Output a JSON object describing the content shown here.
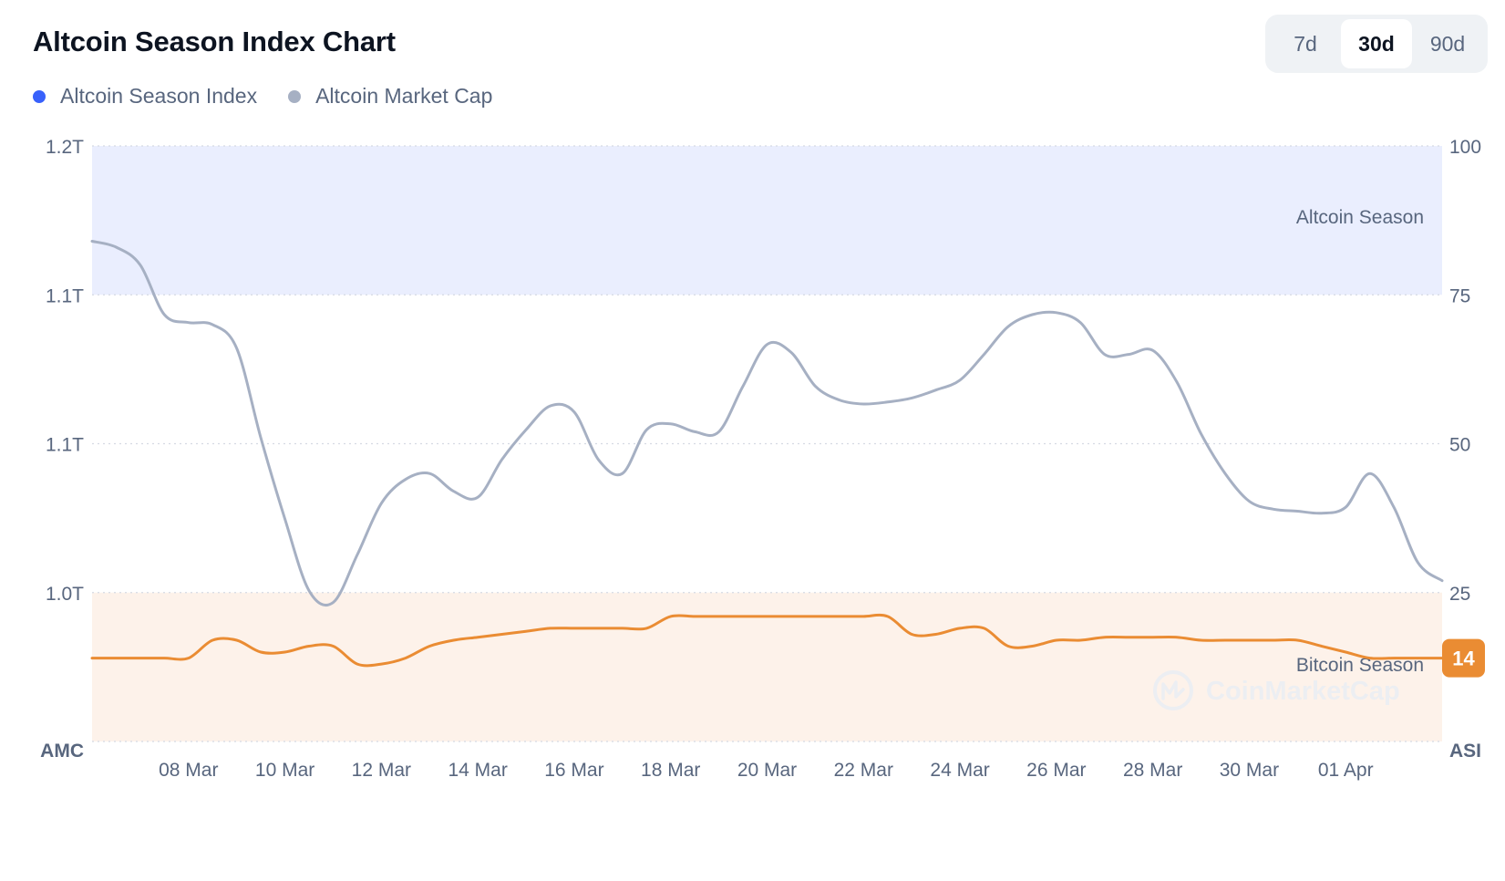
{
  "title": "Altcoin Season Index Chart",
  "legend": [
    {
      "label": "Altcoin Season Index",
      "color": "#3861fb"
    },
    {
      "label": "Altcoin Market Cap",
      "color": "#a6b0c3"
    }
  ],
  "range_buttons": [
    {
      "label": "7d",
      "active": false
    },
    {
      "label": "30d",
      "active": true
    },
    {
      "label": "90d",
      "active": false
    }
  ],
  "watermark": "CoinMarketCap",
  "chart_data": {
    "type": "line",
    "x_ticks": [
      "08 Mar",
      "10 Mar",
      "12 Mar",
      "14 Mar",
      "16 Mar",
      "18 Mar",
      "20 Mar",
      "22 Mar",
      "24 Mar",
      "26 Mar",
      "28 Mar",
      "30 Mar",
      "01 Apr"
    ],
    "x_range": [
      "06 Mar",
      "03 Apr"
    ],
    "left_axis": {
      "title": "AMC",
      "tick_labels": [
        "1.2T",
        "1.1T",
        "1.1T",
        "1.0T"
      ],
      "ylim": [
        0.9,
        1.2
      ],
      "unit": "T"
    },
    "right_axis": {
      "title": "ASI",
      "tick_labels": [
        "100",
        "75",
        "50",
        "25"
      ],
      "ylim": [
        0,
        100
      ]
    },
    "zones": [
      {
        "label": "Altcoin Season",
        "from": 75,
        "to": 100,
        "color": "#eaeefe"
      },
      {
        "label": "Bitcoin Season",
        "from": 0,
        "to": 25,
        "color": "#fdf2ea"
      }
    ],
    "current_value": "14",
    "grid": true,
    "series": [
      {
        "name": "Altcoin Market Cap",
        "axis": "left",
        "color": "#a6b0c3",
        "x": [
          "06 Mar",
          "06 Mar 12:00",
          "07 Mar",
          "07 Mar 12:00",
          "08 Mar",
          "08 Mar 12:00",
          "09 Mar",
          "09 Mar 12:00",
          "10 Mar",
          "10 Mar 12:00",
          "11 Mar",
          "11 Mar 12:00",
          "12 Mar",
          "12 Mar 12:00",
          "13 Mar",
          "13 Mar 12:00",
          "14 Mar",
          "14 Mar 12:00",
          "15 Mar",
          "15 Mar 12:00",
          "16 Mar",
          "16 Mar 12:00",
          "17 Mar",
          "17 Mar 12:00",
          "18 Mar",
          "18 Mar 12:00",
          "19 Mar",
          "19 Mar 12:00",
          "20 Mar",
          "20 Mar 12:00",
          "21 Mar",
          "21 Mar 12:00",
          "22 Mar",
          "22 Mar 12:00",
          "23 Mar",
          "23 Mar 12:00",
          "24 Mar",
          "24 Mar 12:00",
          "25 Mar",
          "25 Mar 12:00",
          "26 Mar",
          "26 Mar 12:00",
          "27 Mar",
          "27 Mar 12:00",
          "28 Mar",
          "28 Mar 12:00",
          "29 Mar",
          "29 Mar 12:00",
          "30 Mar",
          "30 Mar 12:00",
          "31 Mar",
          "31 Mar 12:00",
          "01 Apr",
          "01 Apr 12:00",
          "02 Apr",
          "02 Apr 12:00",
          "03 Apr"
        ],
        "values": [
          1.152,
          1.149,
          1.14,
          1.115,
          1.111,
          1.11,
          1.098,
          1.053,
          1.012,
          0.976,
          0.97,
          0.994,
          1.02,
          1.032,
          1.035,
          1.026,
          1.023,
          1.042,
          1.057,
          1.069,
          1.066,
          1.042,
          1.035,
          1.057,
          1.06,
          1.056,
          1.056,
          1.079,
          1.1,
          1.096,
          1.079,
          1.072,
          1.07,
          1.071,
          1.073,
          1.077,
          1.082,
          1.095,
          1.109,
          1.115,
          1.116,
          1.111,
          1.095,
          1.095,
          1.097,
          1.081,
          1.055,
          1.035,
          1.021,
          1.017,
          1.016,
          1.015,
          1.018,
          1.035,
          1.018,
          0.99,
          0.981
        ]
      },
      {
        "name": "Altcoin Season Index",
        "axis": "right",
        "color": "#ea8c33",
        "x": [
          "06 Mar",
          "06 Mar 12:00",
          "07 Mar",
          "07 Mar 12:00",
          "08 Mar",
          "08 Mar 12:00",
          "09 Mar",
          "09 Mar 12:00",
          "10 Mar",
          "10 Mar 12:00",
          "11 Mar",
          "11 Mar 12:00",
          "12 Mar",
          "12 Mar 12:00",
          "13 Mar",
          "13 Mar 12:00",
          "14 Mar",
          "14 Mar 12:00",
          "15 Mar",
          "15 Mar 12:00",
          "16 Mar",
          "16 Mar 12:00",
          "17 Mar",
          "17 Mar 12:00",
          "18 Mar",
          "18 Mar 12:00",
          "19 Mar",
          "19 Mar 12:00",
          "20 Mar",
          "20 Mar 12:00",
          "21 Mar",
          "21 Mar 12:00",
          "22 Mar",
          "22 Mar 12:00",
          "23 Mar",
          "23 Mar 12:00",
          "24 Mar",
          "24 Mar 12:00",
          "25 Mar",
          "25 Mar 12:00",
          "26 Mar",
          "26 Mar 12:00",
          "27 Mar",
          "27 Mar 12:00",
          "28 Mar",
          "28 Mar 12:00",
          "29 Mar",
          "29 Mar 12:00",
          "30 Mar",
          "30 Mar 12:00",
          "31 Mar",
          "31 Mar 12:00",
          "01 Apr",
          "01 Apr 12:00",
          "02 Apr",
          "02 Apr 12:00",
          "03 Apr"
        ],
        "values": [
          14,
          14,
          14,
          14,
          14,
          17,
          17,
          15,
          15,
          16,
          16,
          13,
          13,
          14,
          16,
          17,
          17.5,
          18,
          18.5,
          19,
          19,
          19,
          19,
          19,
          21,
          21,
          21,
          21,
          21,
          21,
          21,
          21,
          21,
          21,
          18,
          18,
          19,
          19,
          16,
          16,
          17,
          17,
          17.5,
          17.5,
          17.5,
          17.5,
          17,
          17,
          17,
          17,
          17,
          16,
          15,
          14,
          14,
          14,
          14
        ]
      }
    ]
  }
}
